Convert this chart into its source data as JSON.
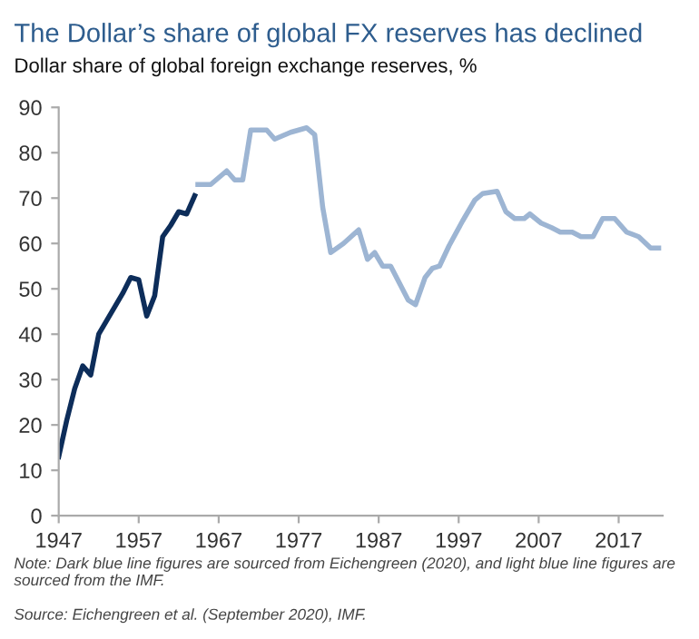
{
  "chart_data": {
    "type": "line",
    "title": "The Dollar’s share of global FX reserves has declined",
    "subtitle": "Dollar share of global foreign exchange reserves, %",
    "series": [
      {
        "color": "#0d2d5a",
        "x": [
          1947,
          1948,
          1949,
          1950,
          1951,
          1952,
          1953,
          1954,
          1955,
          1956,
          1957,
          1958,
          1959,
          1960,
          1961,
          1962,
          1963,
          1964
        ],
        "values": [
          13,
          21,
          28,
          33,
          31,
          40,
          43,
          46,
          49,
          52.5,
          52,
          44,
          48.5,
          61.5,
          64,
          67,
          66.5,
          70.5
        ]
      },
      {
        "color": "#9db5d3",
        "x": [
          1964.4,
          1966,
          1968,
          1969,
          1970,
          1971,
          1973,
          1974,
          1976,
          1978,
          1979,
          1980,
          1981,
          1982.6,
          1984.5,
          1985.6,
          1986.5,
          1987.5,
          1988.5,
          1990.7,
          1991.6,
          1992.8,
          1993.7,
          1994.6,
          1995.8,
          1997.5,
          1999,
          2000,
          2001.8,
          2002.9,
          2004,
          2005.2,
          2005.9,
          2007.3,
          2008.6,
          2009.7,
          2011.2,
          2012.3,
          2013.8,
          2015,
          2016.5,
          2018,
          2019.5,
          2021,
          2022
        ],
        "values": [
          73,
          73,
          76,
          74,
          74,
          85,
          85,
          83,
          84.5,
          85.5,
          84,
          68,
          58,
          60,
          63,
          56.5,
          58,
          55,
          55,
          47.5,
          46.5,
          52.5,
          54.5,
          55,
          59.5,
          65,
          69.5,
          71,
          71.5,
          67,
          65.5,
          65.5,
          66.5,
          64.5,
          63.5,
          62.5,
          62.5,
          61.5,
          61.5,
          65.5,
          65.5,
          62.5,
          61.5,
          59,
          59
        ]
      }
    ],
    "xlim": [
      1947,
      2022.5
    ],
    "xticks": [
      1947,
      1957,
      1967,
      1977,
      1987,
      1997,
      2007,
      2017
    ],
    "ylim": [
      0,
      90
    ],
    "yticks": [
      0,
      10,
      20,
      30,
      40,
      50,
      60,
      70,
      80,
      90
    ],
    "grid": false,
    "legend": false,
    "marker": "none",
    "line_style": "solid",
    "annotations": [
      "Note: Dark blue line figures are sourced from Eichengreen (2020), and light blue line figures are sourced from the IMF.",
      "Source: Eichengreen et al. (September 2020), IMF."
    ]
  }
}
